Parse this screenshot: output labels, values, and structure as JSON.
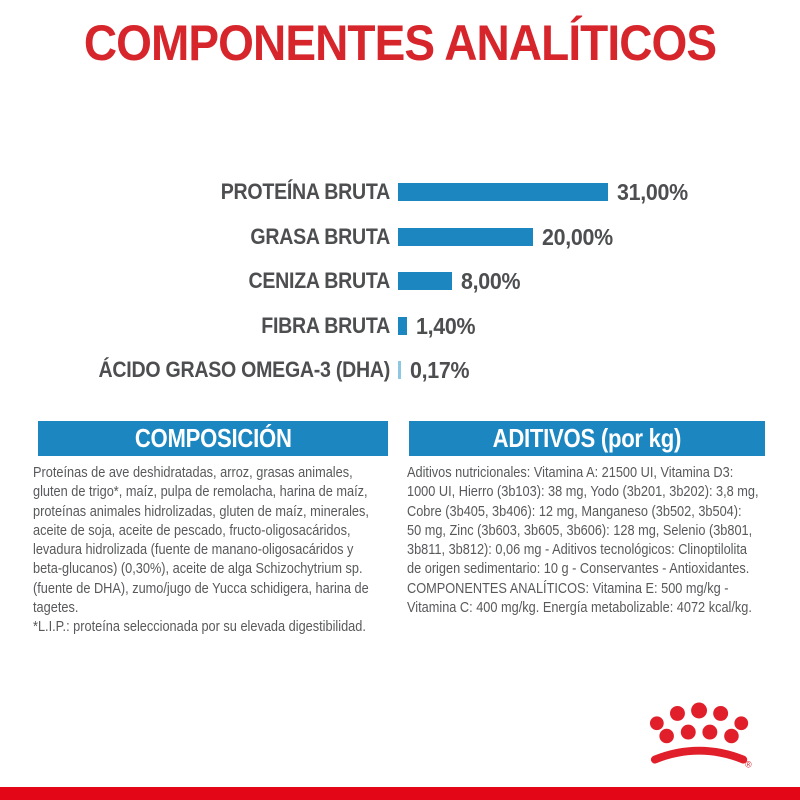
{
  "title": "COMPONENTES ANALÍTICOS",
  "colors": {
    "title_red": "#d7252c",
    "bar_blue": "#1b86c0",
    "bar_blue_light": "#8ec7e2",
    "header_blue": "#1b86c0",
    "label_dark": "#4d4e50",
    "body_gray": "#58595b",
    "logo_red": "#e01f2b",
    "strip_red": "#e30617"
  },
  "chart_data": {
    "type": "bar",
    "orientation": "horizontal",
    "title": "COMPONENTES ANALÍTICOS",
    "categories": [
      "PROTEÍNA BRUTA",
      "GRASA BRUTA",
      "CENIZA BRUTA",
      "FIBRA BRUTA",
      "ÁCIDO GRASO OMEGA-3 (DHA)"
    ],
    "values": [
      31.0,
      20.0,
      8.0,
      1.4,
      0.17
    ],
    "value_labels": [
      "31,00%",
      "20,00%",
      "8,00%",
      "1,40%",
      "0,17%"
    ],
    "unit": "%",
    "xlim": [
      0,
      31
    ],
    "grid": false,
    "legend": false,
    "bar_colors": [
      "#1b86c0",
      "#1b86c0",
      "#1b86c0",
      "#1b86c0",
      "#8ec7e2"
    ]
  },
  "sections": {
    "composition": {
      "header": "COMPOSICIÓN",
      "lines": [
        "Proteínas de ave deshidratadas, arroz, grasas animales,",
        "gluten de trigo*, maíz, pulpa de remolacha, harina de maíz,",
        "proteínas animales hidrolizadas, gluten de maíz, minerales,",
        "aceite de soja, aceite de pescado, fructo-oligosacáridos,",
        "levadura hidrolizada (fuente de manano-oligosacáridos y",
        "beta-glucanos) (0,30%), aceite de alga Schizochytrium sp.",
        "(fuente de DHA), zumo/jugo de Yucca schidigera, harina de",
        "tagetes.",
        "*L.I.P.: proteína seleccionada por su elevada digestibilidad."
      ]
    },
    "additives": {
      "header": "ADITIVOS (por kg)",
      "lines": [
        "Aditivos nutricionales: Vitamina A: 21500 UI, Vitamina D3:",
        "1000 UI, Hierro (3b103): 38 mg, Yodo (3b201, 3b202): 3,8 mg,",
        "Cobre (3b405, 3b406): 12 mg, Manganeso (3b502, 3b504):",
        "50 mg, Zinc (3b603, 3b605, 3b606): 128 mg, Selenio (3b801,",
        "3b811, 3b812): 0,06 mg - Aditivos tecnológicos: Clinoptilolita",
        "de origen sedimentario: 10 g - Conservantes - Antioxidantes.",
        "COMPONENTES ANALÍTICOS: Vitamina E: 500 mg/kg -",
        "Vitamina C: 400 mg/kg. Energía metabolizable: 4072 kcal/kg."
      ]
    }
  },
  "footer": {
    "logo": "royal-canin-crown",
    "registered_mark": "®"
  }
}
